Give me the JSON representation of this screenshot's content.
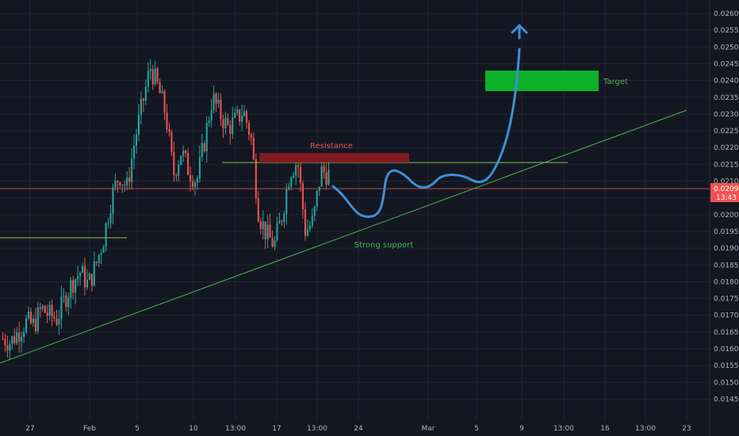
{
  "chart_data": {
    "type": "candlestick",
    "title": "",
    "xlabel": "",
    "ylabel": "",
    "ylim": [
      0.0144,
      0.0262
    ],
    "grid": true,
    "y_ticks": [
      "0.02600",
      "0.02550",
      "0.02500",
      "0.02450",
      "0.02400",
      "0.02350",
      "0.02300",
      "0.02250",
      "0.02200",
      "0.02150",
      "0.02100",
      "0.02050",
      "0.02000",
      "0.01950",
      "0.01900",
      "0.01850",
      "0.01800",
      "0.01750",
      "0.01700",
      "0.01650",
      "0.01600",
      "0.01550",
      "0.01500",
      "0.01450"
    ],
    "x_ticks": [
      "27",
      "Feb",
      "5",
      "10",
      "13:00",
      "17",
      "13:00",
      "24",
      "Mar",
      "5",
      "9",
      "13:00",
      "16",
      "13:00",
      "23"
    ],
    "last_price": "0.02098",
    "countdown": "13:43",
    "colors": {
      "background": "#131722",
      "up": "#26a69a",
      "down": "#ef5350",
      "projection": "#3d8fd6",
      "support": "#4caf50",
      "resistance": "#9b1c22",
      "target": "#0db02b"
    },
    "annotations": {
      "resistance_label": "Resistance",
      "support_label": "Strong support",
      "target_label": "Target"
    },
    "close_path": [
      0.0163,
      0.0162,
      0.0165,
      0.0168,
      0.0167,
      0.0172,
      0.017,
      0.0169,
      0.0175,
      0.018,
      0.0183,
      0.0179,
      0.0185,
      0.0193,
      0.0205,
      0.0212,
      0.0208,
      0.0222,
      0.0233,
      0.0244,
      0.0238,
      0.023,
      0.0212,
      0.0219,
      0.0213,
      0.021,
      0.0222,
      0.0235,
      0.023,
      0.0226,
      0.0228,
      0.0231,
      0.0223,
      0.02,
      0.0194,
      0.0191,
      0.02,
      0.0213,
      0.0216,
      0.0195,
      0.0198,
      0.0213,
      0.0212
    ]
  }
}
